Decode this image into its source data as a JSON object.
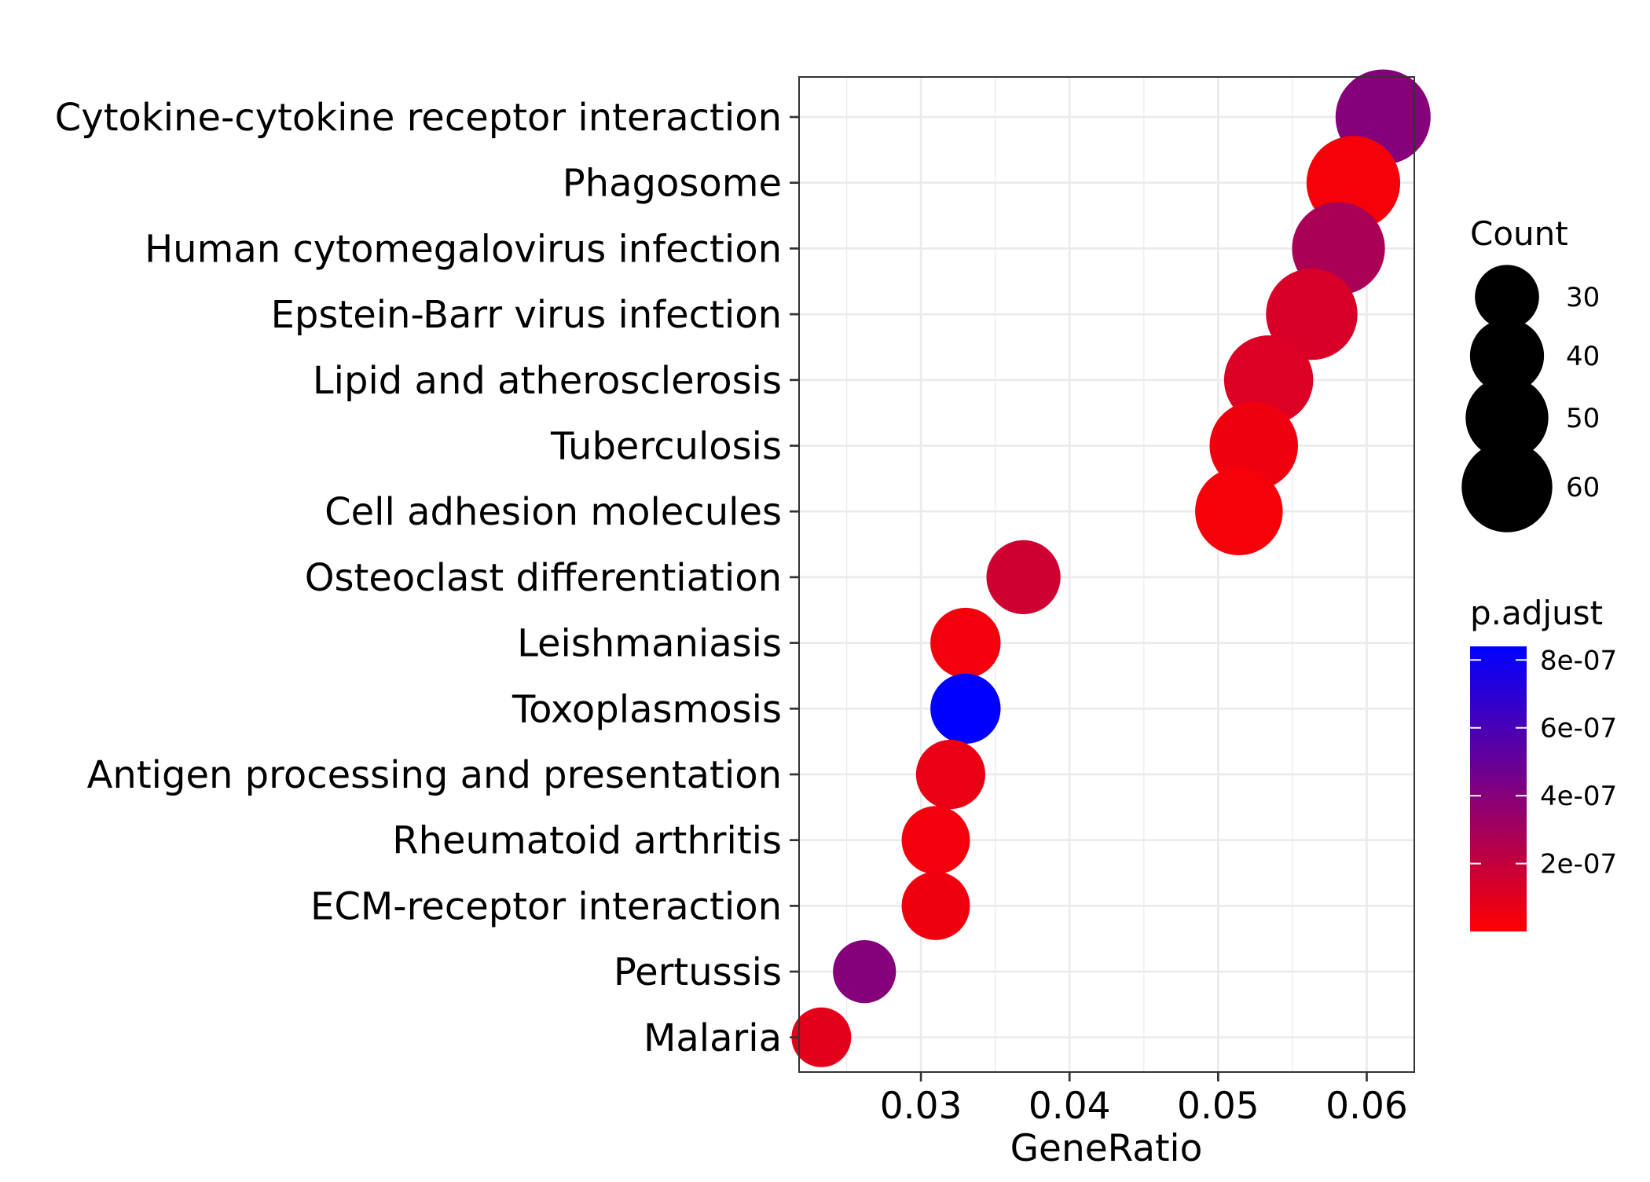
{
  "chart_data": {
    "type": "scatter",
    "xlabel": "GeneRatio",
    "ylabel": "",
    "xlim": [
      0.0218,
      0.0632
    ],
    "xticks": [
      0.03,
      0.04,
      0.05,
      0.06
    ],
    "xtick_labels": [
      "0.03",
      "0.04",
      "0.05",
      "0.06"
    ],
    "grid": true,
    "legend_placement": "right",
    "color_low": "#ff0000",
    "color_high": "#0000ff",
    "points": [
      {
        "term": "Cytokine-cytokine receptor interaction",
        "gene_ratio": 0.0611,
        "count": 66,
        "p_adjust": 4e-07
      },
      {
        "term": "Phagosome",
        "gene_ratio": 0.0591,
        "count": 64,
        "p_adjust": 3e-08
      },
      {
        "term": "Human cytomegalovirus infection",
        "gene_ratio": 0.0581,
        "count": 63,
        "p_adjust": 2.8e-07
      },
      {
        "term": "Epstein-Barr virus infection",
        "gene_ratio": 0.0563,
        "count": 61,
        "p_adjust": 1.3e-07
      },
      {
        "term": "Lipid and atherosclerosis",
        "gene_ratio": 0.0534,
        "count": 58,
        "p_adjust": 1.2e-07
      },
      {
        "term": "Tuberculosis",
        "gene_ratio": 0.0524,
        "count": 57,
        "p_adjust": 5e-08
      },
      {
        "term": "Cell adhesion molecules",
        "gene_ratio": 0.0514,
        "count": 56,
        "p_adjust": 3e-08
      },
      {
        "term": "Osteoclast differentiation",
        "gene_ratio": 0.0369,
        "count": 40,
        "p_adjust": 1.6e-07
      },
      {
        "term": "Leishmaniasis",
        "gene_ratio": 0.033,
        "count": 36,
        "p_adjust": 4e-08
      },
      {
        "term": "Toxoplasmosis",
        "gene_ratio": 0.033,
        "count": 36,
        "p_adjust": 8.4e-07
      },
      {
        "term": "Antigen processing and presentation",
        "gene_ratio": 0.032,
        "count": 35,
        "p_adjust": 7e-08
      },
      {
        "term": "Rheumatoid arthritis",
        "gene_ratio": 0.031,
        "count": 34,
        "p_adjust": 4e-08
      },
      {
        "term": "ECM-receptor interaction",
        "gene_ratio": 0.031,
        "count": 34,
        "p_adjust": 5e-08
      },
      {
        "term": "Pertussis",
        "gene_ratio": 0.0262,
        "count": 29,
        "p_adjust": 4e-07
      },
      {
        "term": "Malaria",
        "gene_ratio": 0.0233,
        "count": 26,
        "p_adjust": 9e-08
      }
    ],
    "size_legend": {
      "title": "Count",
      "values": [
        30,
        40,
        50,
        60
      ],
      "labels": [
        "30",
        "40",
        "50",
        "60"
      ]
    },
    "color_legend": {
      "title": "p.adjust",
      "range": [
        0,
        8.4e-07
      ],
      "values": [
        2e-07,
        4e-07,
        6e-07,
        8e-07
      ],
      "labels": [
        "2e-07",
        "4e-07",
        "6e-07",
        "8e-07"
      ]
    }
  }
}
